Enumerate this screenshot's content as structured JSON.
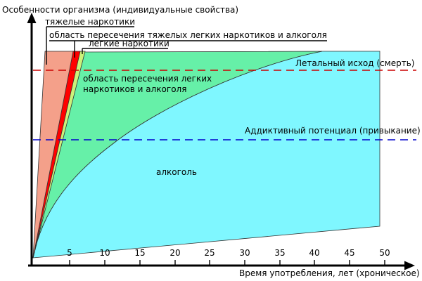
{
  "diagram": {
    "y_axis_label": "Особенности организма (индивидуальные свойства)",
    "x_axis_label": "Время употребления, лет (хроническое)",
    "x_ticks": [
      "5",
      "10",
      "15",
      "20",
      "25",
      "30",
      "35",
      "40",
      "45",
      "50"
    ],
    "thresholds": {
      "lethal": {
        "label": "Летальный исход (смерть)",
        "color": "#cc0000"
      },
      "addictive": {
        "label": "Аддиктивный потенциал (привыкание)",
        "color": "#0000cc"
      }
    },
    "regions": {
      "heavy_drugs": {
        "label": "тяжелые наркотики",
        "color": "#f4a08a"
      },
      "heavy_overlap": {
        "label": "область пересечения тяжелых легких наркотиков и алкоголя",
        "color": "#ff0000"
      },
      "light_drugs": {
        "label": "легкие наркотики",
        "color": "#ccf27a"
      },
      "light_overlap": {
        "label_line1": "область пересечения легких",
        "label_line2": "наркотиков и алкоголя",
        "color": "#66f0a8"
      },
      "alcohol": {
        "label": "алкоголь",
        "color": "#7ff7ff"
      }
    }
  }
}
